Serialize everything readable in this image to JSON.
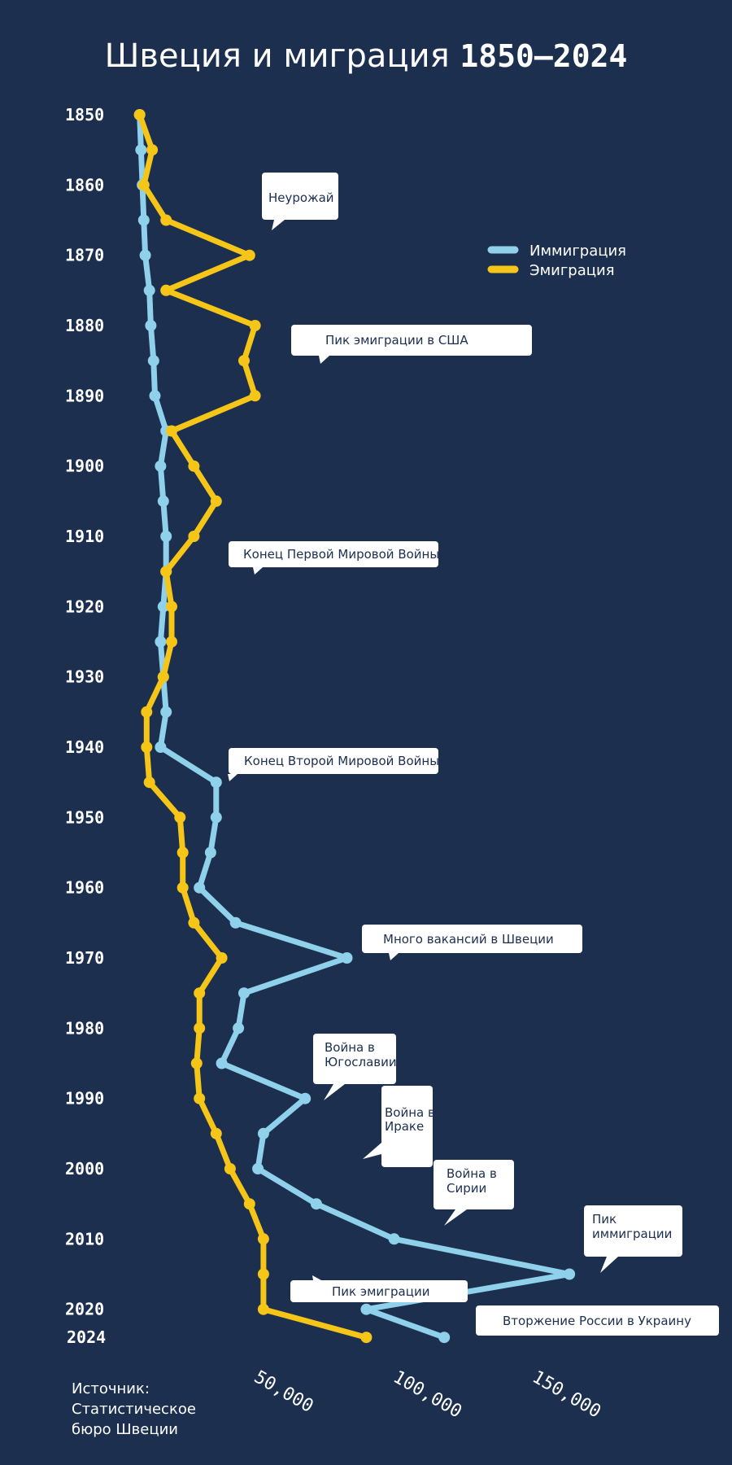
{
  "title_main": "Швеция и миграция",
  "title_years": "1850–2024",
  "source": "Источник: Статистическое бюро Швеции",
  "colors": {
    "background": "#1c2f4f",
    "immigration": "#8fd0ea",
    "emigration": "#f5c518",
    "annotation_bg": "#ffffff",
    "annotation_text": "#1c2f4f"
  },
  "chart_data": {
    "type": "line",
    "orientation": "vertical",
    "title": "Швеция и миграция 1850–2024",
    "y_ticks": [
      "1850",
      "1860",
      "1870",
      "1880",
      "1890",
      "1900",
      "1910",
      "1920",
      "1930",
      "1940",
      "1950",
      "1960",
      "1970",
      "1980",
      "1990",
      "2000",
      "2010",
      "2020",
      "2024"
    ],
    "x_ticks": [
      "50,000",
      "100,000",
      "150,000"
    ],
    "xlim": [
      0,
      160000
    ],
    "ylim": [
      1850,
      2024
    ],
    "years": [
      1850,
      1855,
      1860,
      1865,
      1870,
      1875,
      1880,
      1885,
      1890,
      1895,
      1900,
      1905,
      1910,
      1915,
      1920,
      1925,
      1930,
      1935,
      1940,
      1945,
      1950,
      1955,
      1960,
      1965,
      1970,
      1975,
      1980,
      1985,
      1990,
      1995,
      2000,
      2005,
      2010,
      2015,
      2020,
      2024
    ],
    "series": [
      {
        "name": "Иммиграция",
        "legend_label": "Иммиграция",
        "values": [
          500,
          1000,
          1500,
          2000,
          2500,
          4000,
          4500,
          5500,
          6000,
          10000,
          8000,
          9000,
          10000,
          10000,
          9000,
          8000,
          9000,
          10000,
          8000,
          28000,
          28000,
          26000,
          22000,
          35000,
          75000,
          38000,
          36000,
          30000,
          60000,
          45000,
          43000,
          64000,
          92000,
          155000,
          82000,
          110000
        ]
      },
      {
        "name": "Эмиграция",
        "legend_label": "Эмиграция",
        "values": [
          500,
          5000,
          2000,
          10000,
          40000,
          10000,
          42000,
          38000,
          42000,
          12000,
          20000,
          28000,
          20000,
          10000,
          12000,
          12000,
          9000,
          3000,
          3000,
          4000,
          15000,
          16000,
          16000,
          20000,
          30000,
          22000,
          22000,
          21000,
          22000,
          28000,
          33000,
          40000,
          45000,
          45000,
          45000,
          82000
        ]
      }
    ],
    "annotations": [
      {
        "label": "Неурожай",
        "year": 1868
      },
      {
        "label": "Пик эмиграции в США",
        "year": 1882
      },
      {
        "label": "Конец Первой Мировой Войны",
        "year": 1918
      },
      {
        "label": "Конец Второй Мировой Войны",
        "year": 1945
      },
      {
        "label": "Много вакансий в Швеции",
        "year": 1970
      },
      {
        "label": "Война в Югославии",
        "year": 1991
      },
      {
        "label": "Война в Ираке",
        "year": 1996
      },
      {
        "label": "Война в Сирии",
        "year": 2004
      },
      {
        "label": "Пик иммиграции",
        "year": 2016
      },
      {
        "label": "Пик эмиграции",
        "year": 2018
      },
      {
        "label": "Вторжение России в Украину",
        "year": 2022
      }
    ]
  }
}
